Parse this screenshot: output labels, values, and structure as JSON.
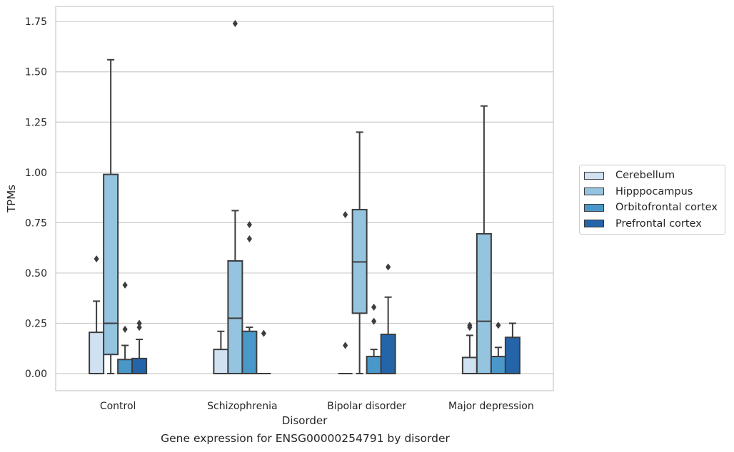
{
  "chart_data": {
    "type": "box",
    "title": "",
    "caption": "Gene expression for ENSG00000254791 by disorder",
    "xlabel": "Disorder",
    "ylabel": "TPMs",
    "ylim": [
      -0.085,
      1.825
    ],
    "yticks": [
      "0.00",
      "0.25",
      "0.50",
      "0.75",
      "1.00",
      "1.25",
      "1.50",
      "1.75"
    ],
    "grid": "horizontal",
    "legend_position": "right",
    "categories": [
      "Control",
      "Schizophrenia",
      "Bipolar disorder",
      "Major depression"
    ],
    "series": [
      {
        "name": "Cerebellum",
        "color": "#d0e1f2",
        "boxes": [
          {
            "q1": 0.0,
            "median": 0.0,
            "q3": 0.205,
            "whislo": 0.0,
            "whishi": 0.36,
            "fliers": [
              0.57
            ]
          },
          {
            "q1": 0.0,
            "median": 0.0,
            "q3": 0.12,
            "whislo": 0.0,
            "whishi": 0.21,
            "fliers": []
          },
          {
            "q1": 0.0,
            "median": 0.0,
            "q3": 0.0,
            "whislo": 0.0,
            "whishi": 0.0,
            "fliers": [
              0.14,
              0.79
            ]
          },
          {
            "q1": 0.0,
            "median": 0.0,
            "q3": 0.08,
            "whislo": 0.0,
            "whishi": 0.19,
            "fliers": [
              0.23,
              0.24
            ]
          }
        ]
      },
      {
        "name": "Hipppocampus",
        "color": "#94c4df",
        "boxes": [
          {
            "q1": 0.095,
            "median": 0.25,
            "q3": 0.99,
            "whislo": 0.0,
            "whishi": 1.56,
            "fliers": []
          },
          {
            "q1": 0.0,
            "median": 0.275,
            "q3": 0.56,
            "whislo": 0.0,
            "whishi": 0.81,
            "fliers": [
              1.74
            ]
          },
          {
            "q1": 0.3,
            "median": 0.555,
            "q3": 0.815,
            "whislo": 0.0,
            "whishi": 1.2,
            "fliers": []
          },
          {
            "q1": 0.0,
            "median": 0.26,
            "q3": 0.695,
            "whislo": 0.0,
            "whishi": 1.33,
            "fliers": []
          }
        ]
      },
      {
        "name": "Orbitofrontal cortex",
        "color": "#4a98c9",
        "boxes": [
          {
            "q1": 0.0,
            "median": 0.0,
            "q3": 0.07,
            "whislo": 0.0,
            "whishi": 0.14,
            "fliers": [
              0.22,
              0.44
            ]
          },
          {
            "q1": 0.0,
            "median": 0.0,
            "q3": 0.21,
            "whislo": 0.0,
            "whishi": 0.23,
            "fliers": [
              0.67,
              0.74
            ]
          },
          {
            "q1": 0.0,
            "median": 0.0,
            "q3": 0.085,
            "whislo": 0.0,
            "whishi": 0.12,
            "fliers": [
              0.26,
              0.33
            ]
          },
          {
            "q1": 0.0,
            "median": 0.0,
            "q3": 0.085,
            "whislo": 0.0,
            "whishi": 0.13,
            "fliers": [
              0.24
            ]
          }
        ]
      },
      {
        "name": "Prefrontal cortex",
        "color": "#2464a8",
        "boxes": [
          {
            "q1": 0.0,
            "median": 0.0,
            "q3": 0.075,
            "whislo": 0.0,
            "whishi": 0.17,
            "fliers": [
              0.23,
              0.25
            ]
          },
          {
            "q1": 0.0,
            "median": 0.0,
            "q3": 0.0,
            "whislo": 0.0,
            "whishi": 0.0,
            "fliers": [
              0.2
            ]
          },
          {
            "q1": 0.0,
            "median": 0.0,
            "q3": 0.195,
            "whislo": 0.0,
            "whishi": 0.38,
            "fliers": [
              0.53
            ]
          },
          {
            "q1": 0.0,
            "median": 0.0,
            "q3": 0.18,
            "whislo": 0.0,
            "whishi": 0.25,
            "fliers": []
          }
        ]
      }
    ]
  }
}
